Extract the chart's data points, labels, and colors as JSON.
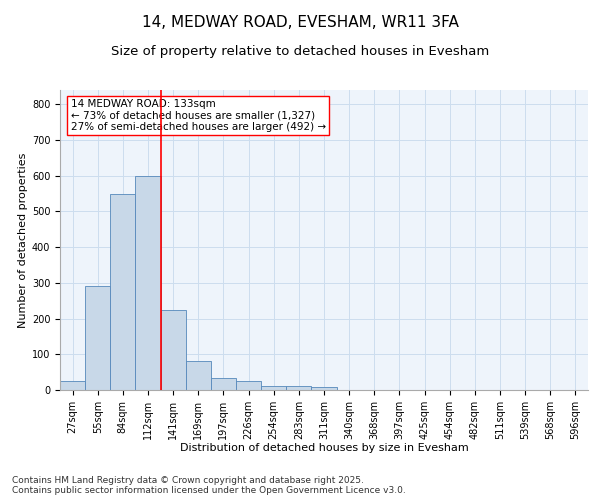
{
  "title_line1": "14, MEDWAY ROAD, EVESHAM, WR11 3FA",
  "title_line2": "Size of property relative to detached houses in Evesham",
  "xlabel": "Distribution of detached houses by size in Evesham",
  "ylabel": "Number of detached properties",
  "bin_labels": [
    "27sqm",
    "55sqm",
    "84sqm",
    "112sqm",
    "141sqm",
    "169sqm",
    "197sqm",
    "226sqm",
    "254sqm",
    "283sqm",
    "311sqm",
    "340sqm",
    "368sqm",
    "397sqm",
    "425sqm",
    "454sqm",
    "482sqm",
    "511sqm",
    "539sqm",
    "568sqm",
    "596sqm"
  ],
  "bin_values": [
    25,
    290,
    550,
    600,
    225,
    80,
    35,
    25,
    12,
    10,
    8,
    0,
    0,
    0,
    0,
    0,
    0,
    0,
    0,
    0,
    0
  ],
  "bar_color": "#c8d8e8",
  "bar_edge_color": "#5588bb",
  "grid_color": "#ccddee",
  "background_color": "#eef4fb",
  "vline_color": "red",
  "vline_x_index": 3.5,
  "annotation_text": "14 MEDWAY ROAD: 133sqm\n← 73% of detached houses are smaller (1,327)\n27% of semi-detached houses are larger (492) →",
  "ylim": [
    0,
    840
  ],
  "yticks": [
    0,
    100,
    200,
    300,
    400,
    500,
    600,
    700,
    800
  ],
  "footer_line1": "Contains HM Land Registry data © Crown copyright and database right 2025.",
  "footer_line2": "Contains public sector information licensed under the Open Government Licence v3.0.",
  "title_fontsize": 11,
  "subtitle_fontsize": 9.5,
  "axis_label_fontsize": 8,
  "tick_fontsize": 7,
  "annotation_fontsize": 7.5,
  "footer_fontsize": 6.5
}
